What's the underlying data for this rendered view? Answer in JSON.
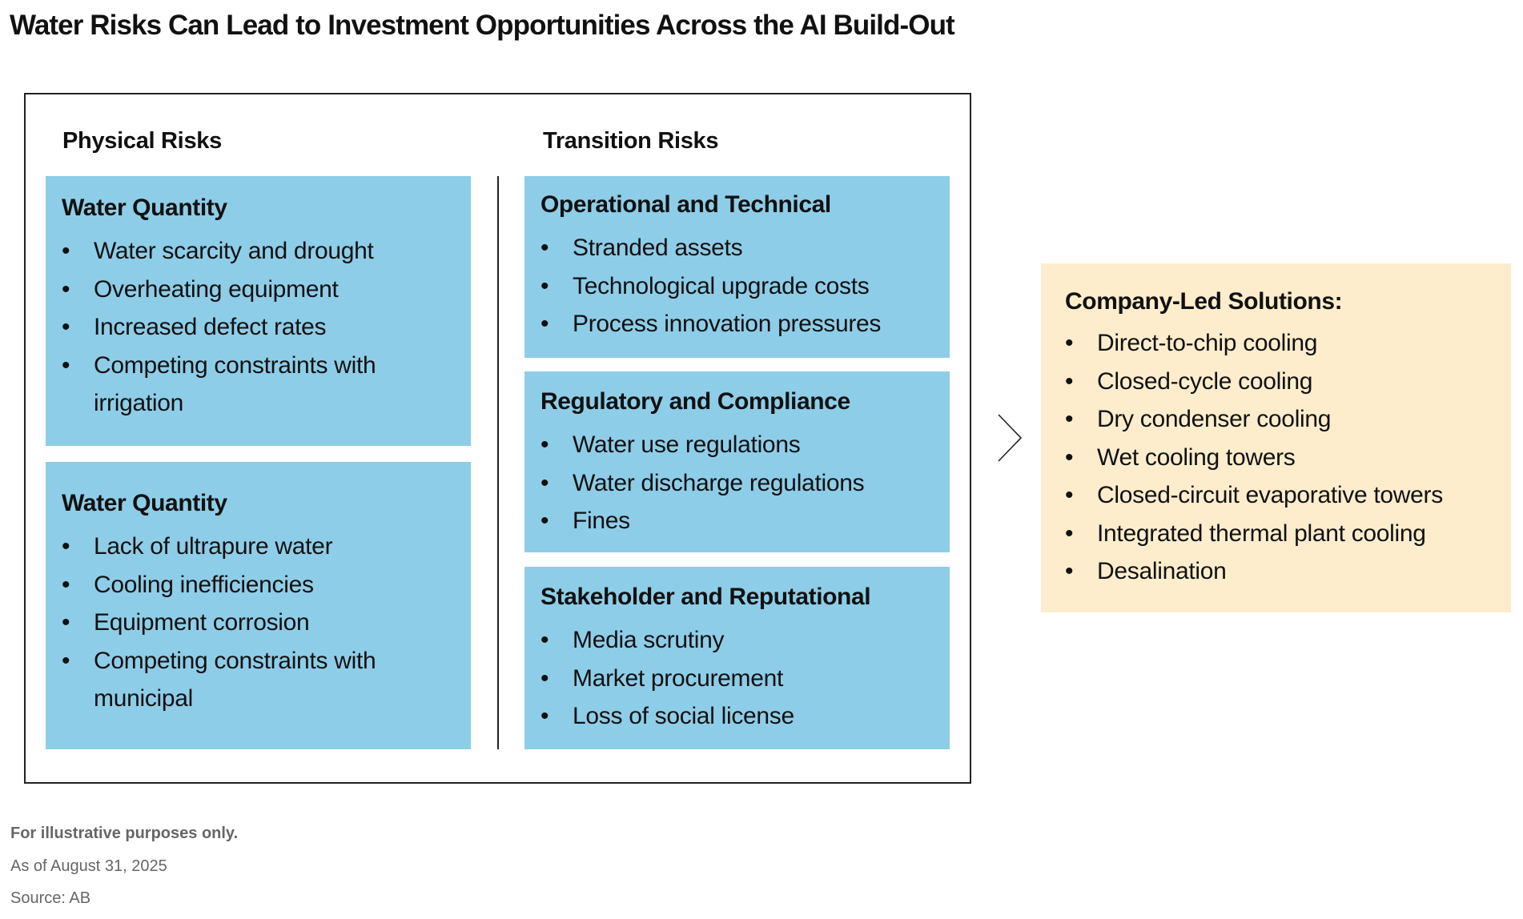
{
  "title": "Water Risks Can Lead to Investment Opportunities Across the AI Build-Out",
  "physical": {
    "heading": "Physical Risks",
    "cards": [
      {
        "title": "Water Quantity",
        "items": [
          "Water scarcity and drought",
          "Overheating equipment",
          "Increased defect rates",
          "Competing constraints with irrigation"
        ]
      },
      {
        "title": "Water Quantity",
        "items": [
          "Lack of ultrapure water",
          "Cooling inefficiencies",
          "Equipment corrosion",
          "Competing constraints with municipal"
        ]
      }
    ]
  },
  "transition": {
    "heading": "Transition Risks",
    "cards": [
      {
        "title": "Operational and Technical",
        "items": [
          "Stranded assets",
          "Technological upgrade costs",
          "Process innovation pressures"
        ]
      },
      {
        "title": "Regulatory and Compliance",
        "items": [
          "Water use regulations",
          "Water discharge regulations",
          "Fines"
        ]
      },
      {
        "title": "Stakeholder and Reputational",
        "items": [
          "Media scrutiny",
          "Market procurement",
          "Loss of social license"
        ]
      }
    ]
  },
  "solutions": {
    "title": "Company-Led Solutions:",
    "items": [
      "Direct-to-chip cooling",
      "Closed-cycle cooling",
      "Dry condenser cooling",
      "Wet cooling towers",
      "Closed-circuit evaporative towers",
      "Integrated thermal plant cooling",
      "Desalination"
    ]
  },
  "bullet": "•",
  "footer": {
    "note": "For illustrative purposes only.",
    "date": "As of August 31, 2025",
    "source": "Source: AB"
  },
  "colors": {
    "risk_card": "#8ECDE8",
    "solutions_card": "#FDEDCC",
    "footer_text": "#666666"
  },
  "icons": {
    "arrow": "chevron-right-icon"
  }
}
